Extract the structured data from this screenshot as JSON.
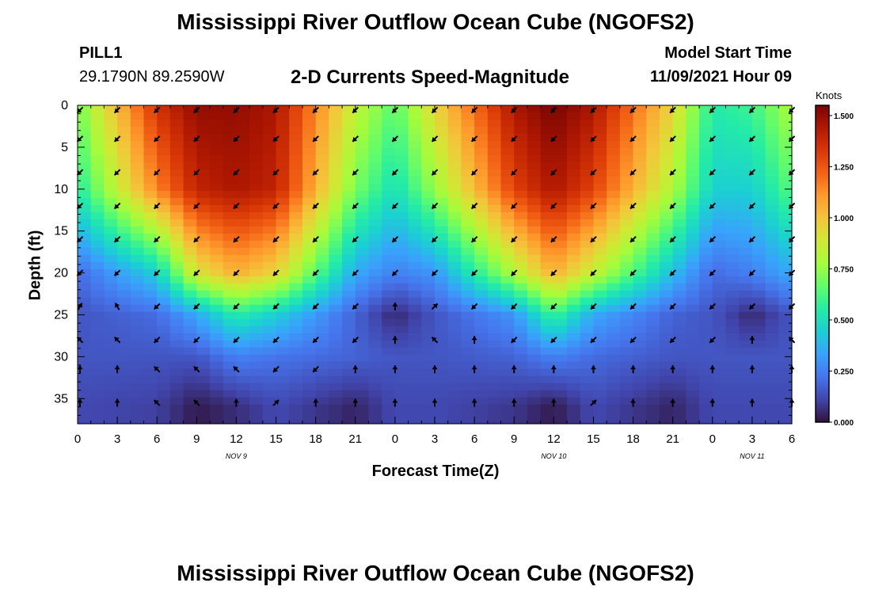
{
  "header": {
    "title": "Mississippi River Outflow Ocean Cube (NGOFS2)",
    "station": "PILL1",
    "coords": "29.1790N  89.2590W",
    "subtitle": "2-D Currents Speed-Magnitude",
    "start_label": "Model Start Time",
    "start_value": "11/09/2021 Hour 09"
  },
  "footer": {
    "title": "Mississippi River Outflow Ocean Cube (NGOFS2)"
  },
  "chart_data": {
    "type": "heatmap",
    "title": "2-D Currents Speed-Magnitude",
    "xlabel": "Forecast Time(Z)",
    "ylabel": "Depth (ft)",
    "colorbar_label": "Knots",
    "x_ticks": [
      "0",
      "3",
      "6",
      "9",
      "12",
      "15",
      "18",
      "21",
      "0",
      "3",
      "6",
      "9",
      "12",
      "15",
      "18",
      "21",
      "0",
      "3",
      "6"
    ],
    "x_tick_hours": [
      0,
      3,
      6,
      9,
      12,
      15,
      18,
      21,
      24,
      27,
      30,
      33,
      36,
      39,
      42,
      45,
      48,
      51,
      54
    ],
    "date_labels": [
      {
        "label": "NOV 9",
        "hour": 12
      },
      {
        "label": "NOV 10",
        "hour": 36
      },
      {
        "label": "NOV 11",
        "hour": 51
      }
    ],
    "xlim": [
      0,
      54
    ],
    "y_ticks": [
      "0",
      "5",
      "10",
      "15",
      "20",
      "25",
      "30",
      "35"
    ],
    "y_tick_values": [
      0,
      5,
      10,
      15,
      20,
      25,
      30,
      35
    ],
    "ylim": [
      0,
      38
    ],
    "y_inverted": true,
    "colorbar_ticks": [
      "0.000",
      "0.250",
      "0.500",
      "0.750",
      "1.000",
      "1.250",
      "1.500"
    ],
    "colorbar_tick_values": [
      0,
      0.25,
      0.5,
      0.75,
      1.0,
      1.25,
      1.5
    ],
    "clim": [
      0,
      1.55
    ],
    "colormap": [
      "#30123b",
      "#4145ab",
      "#4675ed",
      "#39a2fc",
      "#1bcfd4",
      "#24eca6",
      "#61fc6c",
      "#a4fc3b",
      "#d1e834",
      "#f3c63a",
      "#fe9b2d",
      "#f36315",
      "#d93806",
      "#b11901",
      "#7a0403"
    ],
    "speed_samples_knots": {
      "hours": [
        0,
        6,
        9,
        12,
        15,
        21,
        24,
        27,
        33,
        36,
        39,
        45,
        48,
        51,
        54
      ],
      "depths_ft": [
        0,
        10,
        20,
        25,
        30,
        36
      ],
      "values": [
        [
          0.7,
          1.35,
          1.5,
          1.5,
          1.45,
          0.85,
          0.65,
          0.95,
          1.45,
          1.55,
          1.45,
          0.95,
          0.55,
          0.6,
          0.8
        ],
        [
          0.55,
          1.15,
          1.4,
          1.45,
          1.4,
          0.7,
          0.5,
          0.75,
          1.3,
          1.45,
          1.3,
          0.8,
          0.45,
          0.45,
          0.65
        ],
        [
          0.2,
          0.45,
          0.9,
          1.05,
          0.95,
          0.35,
          0.25,
          0.3,
          0.8,
          1.05,
          0.85,
          0.4,
          0.2,
          0.25,
          0.35
        ],
        [
          0.15,
          0.2,
          0.35,
          0.55,
          0.45,
          0.18,
          0.05,
          0.15,
          0.3,
          0.6,
          0.35,
          0.18,
          0.15,
          0.05,
          0.15
        ],
        [
          0.15,
          0.15,
          0.15,
          0.25,
          0.22,
          0.18,
          0.15,
          0.15,
          0.18,
          0.25,
          0.2,
          0.15,
          0.15,
          0.15,
          0.15
        ],
        [
          0.12,
          0.1,
          0.02,
          0.06,
          0.12,
          0.04,
          0.12,
          0.12,
          0.08,
          0.02,
          0.12,
          0.04,
          0.12,
          0.12,
          0.12
        ]
      ]
    },
    "vector_depths_ft": [
      0,
      4,
      8,
      12,
      16,
      20,
      24,
      28,
      31.5,
      35.5
    ],
    "vector_hours": [
      0,
      3,
      6,
      9,
      12,
      15,
      18,
      21,
      24,
      27,
      30,
      33,
      36,
      39,
      42,
      45,
      48,
      51,
      54
    ],
    "vector_directions_deg": [
      [
        225,
        225,
        225,
        225,
        225,
        225,
        225,
        225,
        225,
        225,
        225,
        225,
        225,
        225,
        225,
        225,
        225,
        225,
        225
      ],
      [
        225,
        225,
        225,
        225,
        225,
        225,
        225,
        225,
        225,
        225,
        225,
        225,
        225,
        225,
        225,
        225,
        225,
        225,
        225
      ],
      [
        225,
        225,
        225,
        225,
        225,
        225,
        225,
        225,
        225,
        225,
        225,
        225,
        225,
        225,
        225,
        225,
        225,
        225,
        225
      ],
      [
        225,
        225,
        225,
        225,
        225,
        225,
        225,
        225,
        225,
        225,
        225,
        225,
        225,
        225,
        225,
        225,
        225,
        225,
        225
      ],
      [
        225,
        225,
        225,
        225,
        225,
        225,
        225,
        225,
        225,
        225,
        225,
        225,
        225,
        225,
        225,
        225,
        225,
        225,
        225
      ],
      [
        225,
        225,
        225,
        225,
        225,
        225,
        225,
        225,
        225,
        225,
        225,
        225,
        225,
        225,
        225,
        225,
        225,
        225,
        225
      ],
      [
        30,
        330,
        225,
        225,
        225,
        225,
        225,
        225,
        0,
        45,
        225,
        225,
        225,
        225,
        225,
        225,
        225,
        225,
        225
      ],
      [
        315,
        315,
        225,
        225,
        225,
        225,
        225,
        225,
        0,
        315,
        0,
        225,
        225,
        225,
        225,
        225,
        225,
        0,
        315
      ],
      [
        0,
        0,
        315,
        315,
        315,
        225,
        225,
        0,
        0,
        0,
        0,
        0,
        0,
        0,
        0,
        0,
        0,
        0,
        0
      ],
      [
        0,
        0,
        315,
        315,
        0,
        45,
        0,
        0,
        0,
        0,
        0,
        0,
        0,
        45,
        0,
        0,
        0,
        0,
        0
      ]
    ]
  }
}
